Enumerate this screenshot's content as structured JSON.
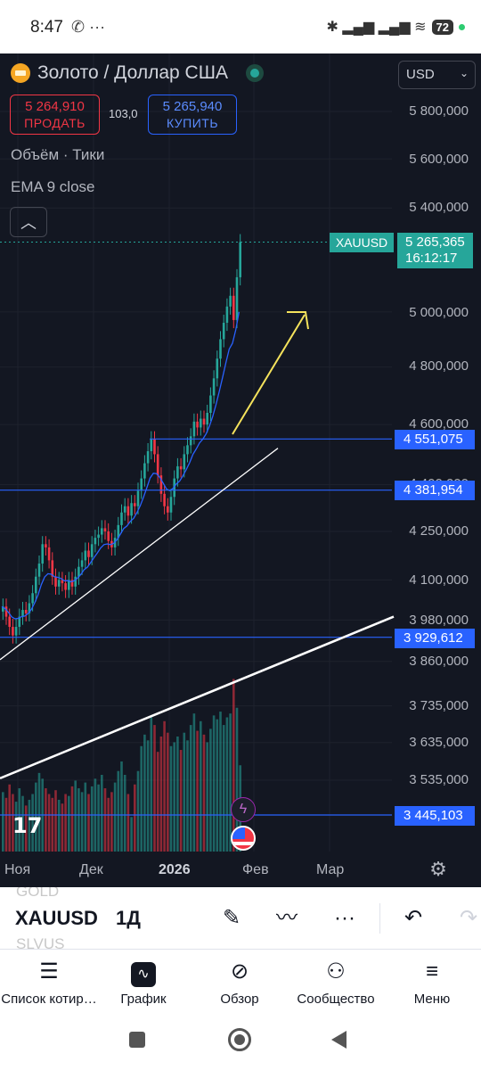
{
  "status_bar": {
    "time": "8:47",
    "left_icons": "✆ ···",
    "right_icons": "✱ ▂▄▆ ▂▄▆ ≋",
    "battery": "72"
  },
  "chart_header": {
    "title": "Золото / Доллар США",
    "currency": "USD",
    "sell_price": "5 264,910",
    "sell_label": "ПРОДАТЬ",
    "spread": "103,0",
    "buy_price": "5 265,940",
    "buy_label": "КУПИТЬ",
    "indicator_volume": "Объём · Тики",
    "indicator_ema": "EMA 9 close",
    "collapse_icon": "︿"
  },
  "colors": {
    "background": "#131722",
    "bull": "#26a69a",
    "bear": "#f23645",
    "ema": "#2962ff",
    "level_line": "#2962ff",
    "trendline": "#ffffff",
    "arrow": "#f5e35c"
  },
  "price_axis": {
    "labels": [
      "5 800,000",
      "5 600,000",
      "5 400,000",
      "5 000,000",
      "4 800,000",
      "4 600,000",
      "4 400,000",
      "4 250,000",
      "4 100,000",
      "3 980,000",
      "3 860,000",
      "3 735,000",
      "3 635,000",
      "3 535,000"
    ],
    "current_symbol": "XAUUSD",
    "current_price": "5 265,365",
    "countdown": "16:12:17",
    "levels": [
      "4 551,075",
      "4 381,954",
      "3 929,612",
      "3 445,103"
    ]
  },
  "time_axis": {
    "labels": [
      "Ноя",
      "Дек",
      "2026",
      "Фев",
      "Мар"
    ]
  },
  "toolbar": {
    "ghost_above": "GOLD",
    "symbol": "XAUUSD",
    "timeframe": "1Д",
    "ghost_below": "SLVUS"
  },
  "bottom_nav": {
    "items": [
      {
        "label": "Список котир…",
        "icon": "watchlist-icon"
      },
      {
        "label": "График",
        "icon": "chart-icon"
      },
      {
        "label": "Обзор",
        "icon": "compass-icon"
      },
      {
        "label": "Сообщество",
        "icon": "community-icon"
      },
      {
        "label": "Меню",
        "icon": "menu-icon"
      }
    ]
  },
  "chart_data": {
    "type": "candlestick",
    "symbol": "XAUUSD",
    "timeframe": "1Д",
    "y_scale": "log",
    "ylim": [
      3445,
      5800
    ],
    "x_labels": [
      "Ноя",
      "Дек",
      "2026",
      "Фев",
      "Мар"
    ],
    "last_price": 5265.365,
    "bid": 5264.91,
    "ask": 5265.94,
    "horizontal_levels": [
      4551.075,
      4381.954,
      3929.612,
      3445.103
    ],
    "trend_lines": [
      {
        "from": {
          "x": "Ноя",
          "y": 3960
        },
        "to": {
          "x": "Фев",
          "y": 4520
        }
      },
      {
        "from": {
          "x": "Ноя",
          "y": 3540
        },
        "to": {
          "x": "Мар",
          "y": 3990
        }
      }
    ],
    "closes": [
      4020,
      3990,
      3960,
      3935,
      3960,
      3990,
      4010,
      4000,
      4030,
      4060,
      4110,
      4150,
      4210,
      4200,
      4160,
      4110,
      4080,
      4100,
      4090,
      4070,
      4100,
      4080,
      4110,
      4140,
      4160,
      4190,
      4170,
      4210,
      4230,
      4240,
      4260,
      4250,
      4220,
      4200,
      4230,
      4270,
      4310,
      4330,
      4300,
      4340,
      4330,
      4380,
      4420,
      4470,
      4510,
      4550,
      4500,
      4430,
      4370,
      4330,
      4310,
      4360,
      4420,
      4460,
      4450,
      4500,
      4530,
      4560,
      4610,
      4590,
      4620,
      4600,
      4640,
      4700,
      4760,
      4830,
      4900,
      4960,
      5020,
      5060,
      4970,
      5130,
      5265
    ],
    "volumes": [
      0.31,
      0.28,
      0.35,
      0.3,
      0.26,
      0.33,
      0.29,
      0.24,
      0.27,
      0.3,
      0.36,
      0.41,
      0.38,
      0.33,
      0.3,
      0.28,
      0.32,
      0.27,
      0.25,
      0.3,
      0.29,
      0.34,
      0.37,
      0.33,
      0.31,
      0.36,
      0.3,
      0.34,
      0.38,
      0.35,
      0.4,
      0.33,
      0.28,
      0.31,
      0.36,
      0.42,
      0.47,
      0.4,
      0.3,
      0.18,
      0.35,
      0.42,
      0.55,
      0.61,
      0.58,
      0.7,
      0.66,
      0.52,
      0.6,
      0.68,
      0.62,
      0.55,
      0.57,
      0.6,
      0.53,
      0.62,
      0.58,
      0.66,
      0.72,
      0.63,
      0.68,
      0.61,
      0.57,
      0.64,
      0.71,
      0.69,
      0.73,
      0.66,
      0.7,
      0.72,
      0.9,
      0.75,
      0.45
    ]
  }
}
